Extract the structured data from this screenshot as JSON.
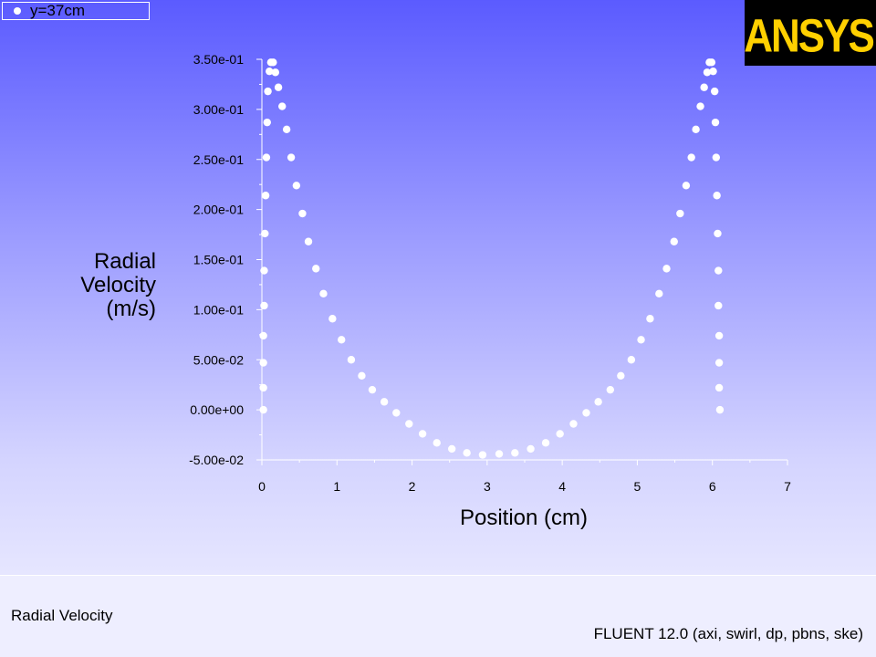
{
  "legend": {
    "label": "y=37cm",
    "marker_color": "#ffffff"
  },
  "logo": {
    "text": "ANSYS",
    "color": "#ffd000"
  },
  "footer": {
    "left": "Radial Velocity",
    "right": "FLUENT 12.0 (axi, swirl, dp, pbns, ske)"
  },
  "colors": {
    "background_top": "#5b5bff",
    "background_bottom": "#e6e6ff",
    "axis": "#ffffff",
    "marker": "#ffffff"
  },
  "chart_data": {
    "type": "scatter",
    "title": "",
    "xlabel": "Position (cm)",
    "ylabel_lines": [
      "Radial",
      "Velocity",
      "(m/s)"
    ],
    "xlim": [
      0,
      7
    ],
    "ylim": [
      -0.05,
      0.35
    ],
    "xticks": [
      0,
      1,
      2,
      3,
      4,
      5,
      6,
      7
    ],
    "xtick_labels": [
      "0",
      "1",
      "2",
      "3",
      "4",
      "5",
      "6",
      "7"
    ],
    "yticks": [
      -0.05,
      0,
      0.05,
      0.1,
      0.15,
      0.2,
      0.25,
      0.3,
      0.35
    ],
    "ytick_labels": [
      "-5.00e-02",
      "0.00e+00",
      "5.00e-02",
      "1.00e-01",
      "1.50e-01",
      "2.00e-01",
      "2.50e-01",
      "3.00e-01",
      "3.50e-01"
    ],
    "grid": false,
    "legend_position": "top-left",
    "series": [
      {
        "name": "y=37cm",
        "points": [
          [
            0.02,
            0.0
          ],
          [
            0.02,
            0.022
          ],
          [
            0.02,
            0.047
          ],
          [
            0.02,
            0.074
          ],
          [
            0.03,
            0.104
          ],
          [
            0.03,
            0.139
          ],
          [
            0.04,
            0.176
          ],
          [
            0.05,
            0.214
          ],
          [
            0.06,
            0.252
          ],
          [
            0.07,
            0.287
          ],
          [
            0.08,
            0.318
          ],
          [
            0.1,
            0.338
          ],
          [
            0.12,
            0.347
          ],
          [
            0.15,
            0.347
          ],
          [
            0.18,
            0.337
          ],
          [
            0.22,
            0.322
          ],
          [
            0.27,
            0.303
          ],
          [
            0.33,
            0.28
          ],
          [
            0.39,
            0.252
          ],
          [
            0.46,
            0.224
          ],
          [
            0.54,
            0.196
          ],
          [
            0.62,
            0.168
          ],
          [
            0.72,
            0.141
          ],
          [
            0.82,
            0.116
          ],
          [
            0.94,
            0.091
          ],
          [
            1.06,
            0.07
          ],
          [
            1.19,
            0.05
          ],
          [
            1.33,
            0.034
          ],
          [
            1.47,
            0.02
          ],
          [
            1.63,
            0.008
          ],
          [
            1.79,
            -0.003
          ],
          [
            1.96,
            -0.014
          ],
          [
            2.14,
            -0.024
          ],
          [
            2.33,
            -0.033
          ],
          [
            2.53,
            -0.039
          ],
          [
            2.73,
            -0.043
          ],
          [
            2.94,
            -0.045
          ],
          [
            3.16,
            -0.044
          ],
          [
            3.37,
            -0.043
          ],
          [
            3.58,
            -0.039
          ],
          [
            3.78,
            -0.033
          ],
          [
            3.97,
            -0.024
          ],
          [
            4.15,
            -0.014
          ],
          [
            4.32,
            -0.003
          ],
          [
            4.48,
            0.008
          ],
          [
            4.64,
            0.02
          ],
          [
            4.78,
            0.034
          ],
          [
            4.92,
            0.05
          ],
          [
            5.05,
            0.07
          ],
          [
            5.17,
            0.091
          ],
          [
            5.29,
            0.116
          ],
          [
            5.39,
            0.141
          ],
          [
            5.49,
            0.168
          ],
          [
            5.57,
            0.196
          ],
          [
            5.65,
            0.224
          ],
          [
            5.72,
            0.252
          ],
          [
            5.78,
            0.28
          ],
          [
            5.84,
            0.303
          ],
          [
            5.89,
            0.322
          ],
          [
            5.93,
            0.337
          ],
          [
            5.96,
            0.347
          ],
          [
            5.99,
            0.347
          ],
          [
            6.01,
            0.338
          ],
          [
            6.03,
            0.318
          ],
          [
            6.04,
            0.287
          ],
          [
            6.05,
            0.252
          ],
          [
            6.06,
            0.214
          ],
          [
            6.07,
            0.176
          ],
          [
            6.08,
            0.139
          ],
          [
            6.08,
            0.104
          ],
          [
            6.09,
            0.074
          ],
          [
            6.09,
            0.047
          ],
          [
            6.09,
            0.022
          ],
          [
            6.1,
            0.0
          ]
        ]
      }
    ]
  }
}
